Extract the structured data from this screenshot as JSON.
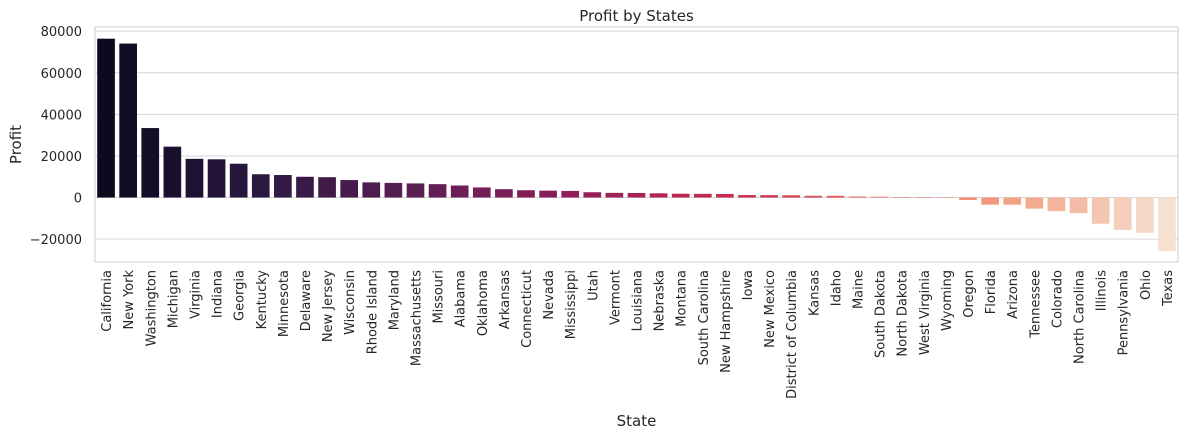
{
  "chart_data": {
    "type": "bar",
    "title": "Profit by States",
    "xlabel": "State",
    "ylabel": "Profit",
    "ylim": [
      -31000,
      82000
    ],
    "yticks": [
      -20000,
      0,
      20000,
      40000,
      60000,
      80000
    ],
    "ytick_labels": [
      "−20000",
      "0",
      "20000",
      "40000",
      "60000",
      "80000"
    ],
    "grid": "horizontal",
    "palette": "rocket",
    "categories": [
      "California",
      "New York",
      "Washington",
      "Michigan",
      "Virginia",
      "Indiana",
      "Georgia",
      "Kentucky",
      "Minnesota",
      "Delaware",
      "New Jersey",
      "Wisconsin",
      "Rhode Island",
      "Maryland",
      "Massachusetts",
      "Missouri",
      "Alabama",
      "Oklahoma",
      "Arkansas",
      "Connecticut",
      "Nevada",
      "Mississippi",
      "Utah",
      "Vermont",
      "Louisiana",
      "Nebraska",
      "Montana",
      "South Carolina",
      "New Hampshire",
      "Iowa",
      "New Mexico",
      "District of Columbia",
      "Kansas",
      "Idaho",
      "Maine",
      "South Dakota",
      "North Dakota",
      "West Virginia",
      "Wyoming",
      "Oregon",
      "Florida",
      "Arizona",
      "Tennessee",
      "Colorado",
      "North Carolina",
      "Illinois",
      "Pennsylvania",
      "Ohio",
      "Texas"
    ],
    "values": [
      76381,
      74039,
      33403,
      24463,
      18598,
      18383,
      16250,
      11200,
      10823,
      9977,
      9773,
      8402,
      7286,
      7031,
      6786,
      6436,
      5787,
      4853,
      4009,
      3511,
      3317,
      3173,
      2547,
      2245,
      2196,
      2037,
      1833,
      1770,
      1707,
      1184,
      1157,
      1060,
      837,
      827,
      454,
      395,
      230,
      186,
      100,
      -1190,
      -3399,
      -3428,
      -5342,
      -6528,
      -7491,
      -12608,
      -15560,
      -16971,
      -25729
    ]
  }
}
